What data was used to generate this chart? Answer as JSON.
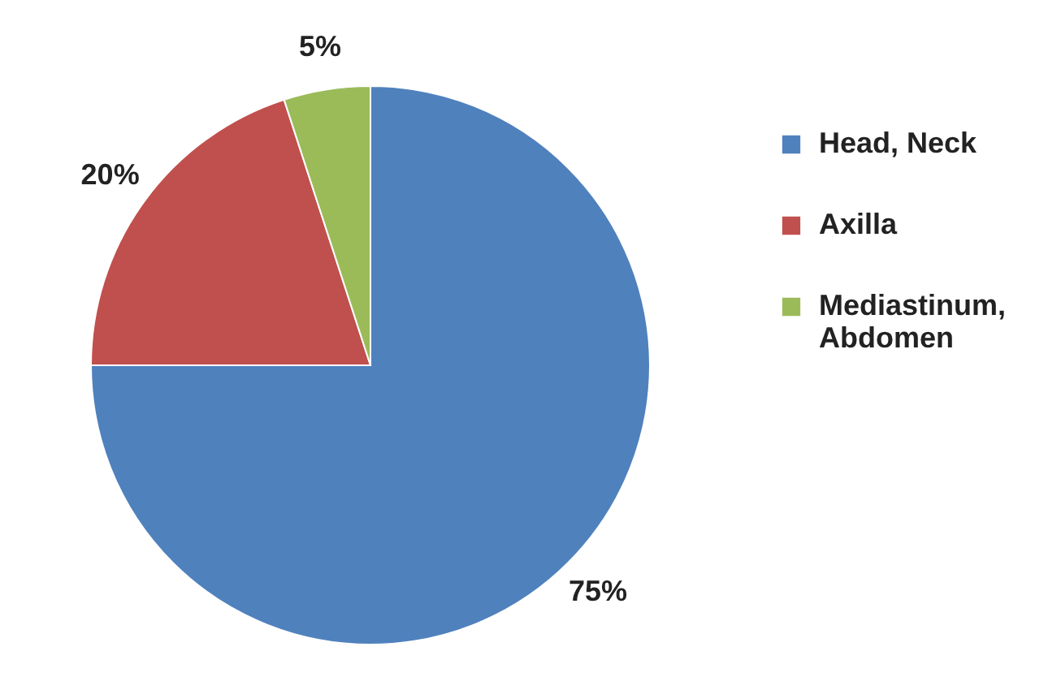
{
  "chart_data": {
    "type": "pie",
    "categories": [
      "Head, Neck",
      "Axilla",
      "Mediastinum, Abdomen"
    ],
    "values": [
      75,
      20,
      5
    ],
    "colors": [
      "#4f81bd",
      "#c0504d",
      "#9bbb59"
    ],
    "value_labels": [
      "75%",
      "20%",
      "5%"
    ],
    "legend": "right"
  }
}
